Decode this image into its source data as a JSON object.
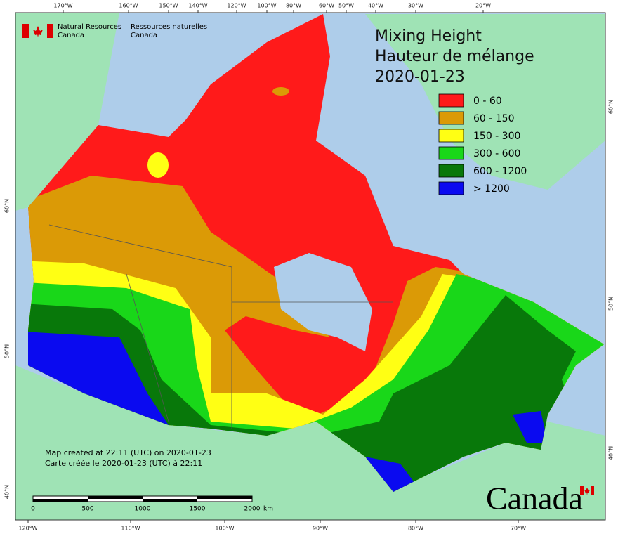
{
  "header": {
    "agency_en": [
      "Natural Resources",
      "Canada"
    ],
    "agency_fr": [
      "Ressources naturelles",
      "Canada"
    ]
  },
  "title": [
    "Mixing Height",
    "Hauteur de mélange",
    "2020-01-23"
  ],
  "legend": [
    {
      "label": "0 - 60",
      "color": "#ff1a1a"
    },
    {
      "label": "60 - 150",
      "color": "#db9a06"
    },
    {
      "label": "150 - 300",
      "color": "#ffff14"
    },
    {
      "label": "300 - 600",
      "color": "#19d719"
    },
    {
      "label": "600 - 1200",
      "color": "#08780a"
    },
    {
      "label": "> 1200",
      "color": "#0a0af0"
    }
  ],
  "top_ticks": [
    "170°W",
    "160°W",
    "150°W",
    "140°W",
    "120°W",
    "100°W",
    "80°W",
    "60°W",
    "50°W",
    "40°W",
    "30°W",
    "20°W"
  ],
  "bottom_ticks": [
    "120°W",
    "110°W",
    "100°W",
    "90°W",
    "80°W",
    "70°W"
  ],
  "left_ticks": [
    "60°N",
    "50°N",
    "40°N"
  ],
  "right_ticks": [
    "60°N",
    "50°N",
    "40°N"
  ],
  "footer": [
    "Map created at 22:11 (UTC) on 2020-01-23",
    "Carte créée le 2020-01-23 (UTC) à 22:11"
  ],
  "scale": {
    "labels": [
      "0",
      "500",
      "1000",
      "1500",
      "2000"
    ],
    "unit": "km"
  },
  "wordmark": "Canada"
}
